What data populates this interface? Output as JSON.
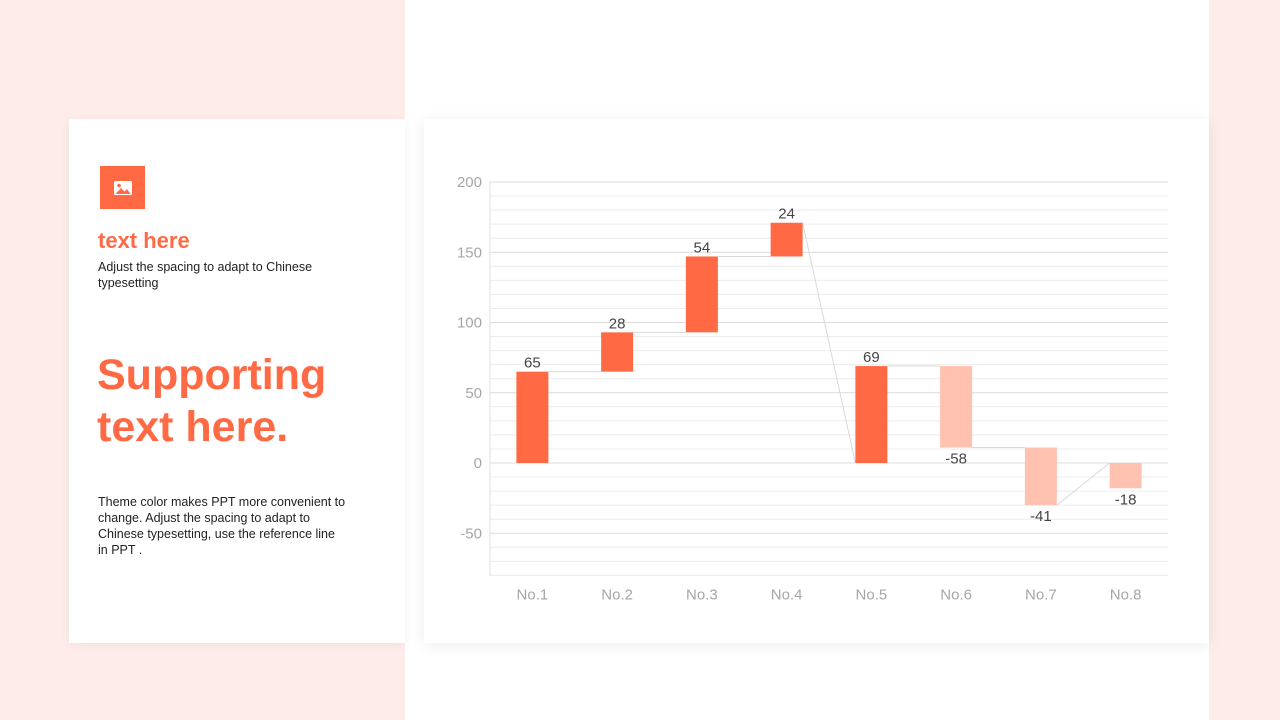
{
  "left_panel": {
    "heading": "text here",
    "subheading": "Adjust the spacing to adapt to Chinese typesetting",
    "big_text": "Supporting text here.",
    "body": "Theme color makes PPT more convenient to change. Adjust the spacing to adapt to Chinese typesetting, use the reference line in PPT ."
  },
  "icons": {
    "image": "image-icon"
  },
  "colors": {
    "accent": "#ff6a45",
    "negative": "#ffc2b1",
    "background_tint": "#fdecea",
    "grid": "#e4e4e4",
    "connector": "#d9d9d9"
  },
  "chart_data": {
    "type": "bar",
    "subtype": "waterfall",
    "categories": [
      "No.1",
      "No.2",
      "No.3",
      "No.4",
      "No.5",
      "No.6",
      "No.7",
      "No.8"
    ],
    "values": [
      65,
      28,
      54,
      24,
      69,
      -58,
      -41,
      -18
    ],
    "labels": [
      "65",
      "28",
      "54",
      "24",
      "69",
      "-58",
      "-41",
      "-18"
    ],
    "bars": [
      {
        "start": 0,
        "end": 65
      },
      {
        "start": 65,
        "end": 93
      },
      {
        "start": 93,
        "end": 147
      },
      {
        "start": 147,
        "end": 171
      },
      {
        "start": 0,
        "end": 69
      },
      {
        "start": 69,
        "end": 11
      },
      {
        "start": 11,
        "end": -30
      },
      {
        "start": 0,
        "end": -18
      }
    ],
    "ylim": [
      -80,
      200
    ],
    "yticks": [
      200,
      150,
      100,
      50,
      0,
      -50
    ],
    "minor_gridlines": true,
    "legend": false,
    "title": "",
    "xlabel": "",
    "ylabel": ""
  }
}
